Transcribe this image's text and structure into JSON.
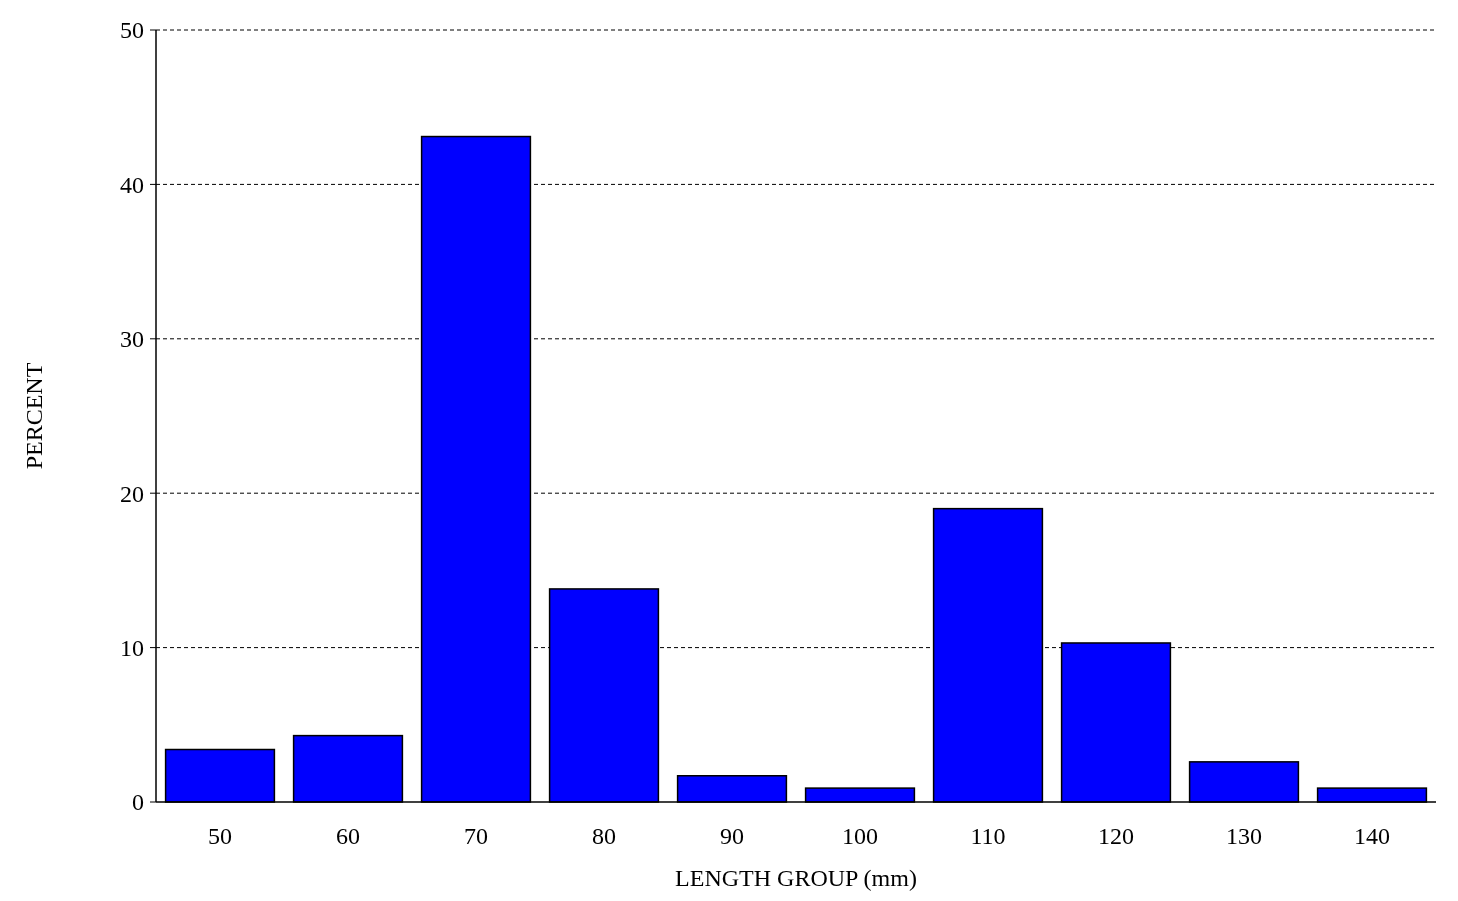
{
  "chart_data": {
    "type": "bar",
    "xlabel": "LENGTH GROUP (mm)",
    "ylabel": "PERCENT",
    "categories": [
      "50",
      "60",
      "70",
      "80",
      "90",
      "100",
      "110",
      "120",
      "130",
      "140"
    ],
    "values": [
      3.4,
      4.3,
      43.1,
      13.8,
      1.7,
      0.9,
      19.0,
      10.3,
      2.6,
      0.9
    ],
    "color": "#0000ff",
    "ylim": [
      0,
      50
    ],
    "yticks": [
      0,
      10,
      20,
      30,
      40,
      50
    ],
    "grid": "y",
    "line_style": "dashed"
  }
}
